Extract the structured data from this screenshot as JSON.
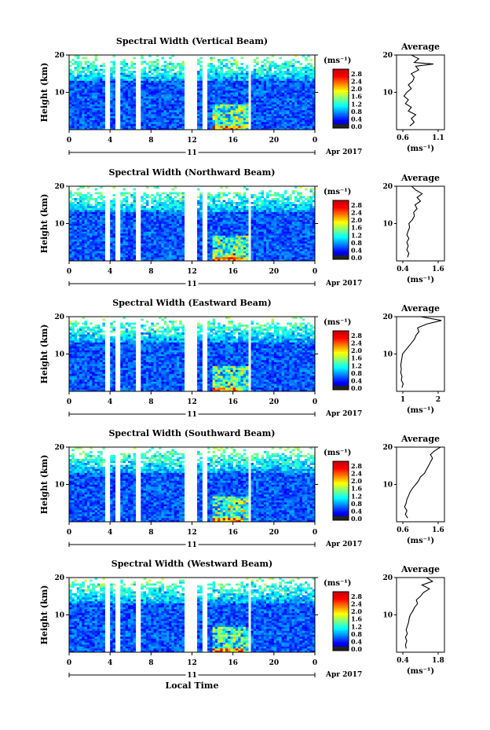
{
  "chart_data": [
    {
      "type": "heatmap",
      "title": "Spectral Width (Vertical Beam)",
      "ylabel": "Height (km)",
      "x_ticks": [
        "0",
        "4",
        "8",
        "12",
        "16",
        "20",
        "0"
      ],
      "y_ticks": [
        "10",
        "20"
      ],
      "date_day": "11",
      "date_label": "Apr 2017",
      "colorbar": {
        "unit": "(ms⁻¹)",
        "ticks": [
          "2.8",
          "2.4",
          "2.0",
          "1.6",
          "1.2",
          "0.8",
          "0.4",
          "0.0"
        ]
      },
      "average": {
        "title": "Average",
        "xlabel": "(ms⁻¹)",
        "x_ticks": [
          "0.6",
          "1.1"
        ],
        "xlim": [
          0.5,
          1.15
        ],
        "y_ticks": [
          "10",
          "20"
        ],
        "profile": [
          [
            0.68,
            1
          ],
          [
            0.74,
            2
          ],
          [
            0.7,
            3
          ],
          [
            0.76,
            4
          ],
          [
            0.66,
            5
          ],
          [
            0.7,
            6
          ],
          [
            0.62,
            7
          ],
          [
            0.66,
            8
          ],
          [
            0.6,
            9
          ],
          [
            0.64,
            10
          ],
          [
            0.7,
            11
          ],
          [
            0.66,
            12
          ],
          [
            0.72,
            13
          ],
          [
            0.74,
            14
          ],
          [
            0.7,
            15
          ],
          [
            0.8,
            16
          ],
          [
            0.76,
            17
          ],
          [
            1.0,
            17.6
          ],
          [
            0.74,
            18
          ],
          [
            0.8,
            19
          ],
          [
            0.7,
            20
          ]
        ]
      }
    },
    {
      "type": "heatmap",
      "title": "Spectral Width (Northward Beam)",
      "ylabel": "Height (km)",
      "x_ticks": [
        "0",
        "4",
        "8",
        "12",
        "16",
        "20",
        "0"
      ],
      "y_ticks": [
        "10",
        "20"
      ],
      "date_day": "11",
      "date_label": "Apr 2017",
      "colorbar": {
        "unit": "(ms⁻¹)",
        "ticks": [
          "2.8",
          "2.4",
          "2.0",
          "1.6",
          "1.2",
          "0.8",
          "0.4",
          "0.0"
        ]
      },
      "average": {
        "title": "Average",
        "xlabel": "(ms⁻¹)",
        "x_ticks": [
          "0.4",
          "1.6"
        ],
        "xlim": [
          0.3,
          1.7
        ],
        "y_ticks": [
          "10",
          "20"
        ],
        "profile": [
          [
            0.62,
            1
          ],
          [
            0.66,
            2
          ],
          [
            0.6,
            3
          ],
          [
            0.64,
            4
          ],
          [
            0.6,
            5
          ],
          [
            0.66,
            6
          ],
          [
            0.6,
            7
          ],
          [
            0.64,
            8
          ],
          [
            0.68,
            9
          ],
          [
            0.66,
            10
          ],
          [
            0.76,
            11
          ],
          [
            0.82,
            12
          ],
          [
            0.8,
            13
          ],
          [
            0.9,
            14
          ],
          [
            0.84,
            15
          ],
          [
            1.0,
            16
          ],
          [
            0.9,
            17
          ],
          [
            1.05,
            18
          ],
          [
            0.86,
            19
          ],
          [
            0.74,
            20
          ]
        ]
      }
    },
    {
      "type": "heatmap",
      "title": "Spectral Width (Eastward Beam)",
      "ylabel": "Height (km)",
      "x_ticks": [
        "0",
        "4",
        "8",
        "12",
        "16",
        "20",
        "0"
      ],
      "y_ticks": [
        "10",
        "20"
      ],
      "date_day": "11",
      "date_label": "Apr 2017",
      "colorbar": {
        "unit": "(ms⁻¹)",
        "ticks": [
          "2.8",
          "2.4",
          "2.0",
          "1.6",
          "1.2",
          "0.8",
          "0.4",
          "0.0"
        ]
      },
      "average": {
        "title": "Average",
        "xlabel": "(ms⁻¹)",
        "x_ticks": [
          "1",
          "2"
        ],
        "xlim": [
          0.6,
          2.2
        ],
        "y_ticks": [
          "10",
          "20"
        ],
        "profile": [
          [
            0.78,
            1
          ],
          [
            0.82,
            2
          ],
          [
            0.76,
            3
          ],
          [
            0.78,
            4
          ],
          [
            0.74,
            5
          ],
          [
            0.76,
            6
          ],
          [
            0.74,
            7
          ],
          [
            0.76,
            8
          ],
          [
            0.78,
            9
          ],
          [
            0.8,
            10
          ],
          [
            0.9,
            11
          ],
          [
            1.0,
            12
          ],
          [
            1.1,
            13
          ],
          [
            1.2,
            14
          ],
          [
            1.25,
            15
          ],
          [
            1.35,
            16
          ],
          [
            1.3,
            17
          ],
          [
            1.6,
            18
          ],
          [
            2.1,
            19
          ],
          [
            1.4,
            20
          ]
        ]
      }
    },
    {
      "type": "heatmap",
      "title": "Spectral Width (Southward Beam)",
      "ylabel": "Height (km)",
      "x_ticks": [
        "0",
        "4",
        "8",
        "12",
        "16",
        "20",
        "0"
      ],
      "y_ticks": [
        "10",
        "20"
      ],
      "date_day": "11",
      "date_label": "Apr 2017",
      "colorbar": {
        "unit": "(ms⁻¹)",
        "ticks": [
          "2.8",
          "2.4",
          "2.0",
          "1.6",
          "1.2",
          "0.8",
          "0.4",
          "0.0"
        ]
      },
      "average": {
        "title": "Average",
        "xlabel": "(ms⁻¹)",
        "x_ticks": [
          "0.6",
          "1.6"
        ],
        "xlim": [
          0.5,
          1.7
        ],
        "y_ticks": [
          "10",
          "20"
        ],
        "profile": [
          [
            0.78,
            1
          ],
          [
            0.72,
            2
          ],
          [
            0.76,
            3
          ],
          [
            0.7,
            4
          ],
          [
            0.74,
            5
          ],
          [
            0.76,
            6
          ],
          [
            0.8,
            7
          ],
          [
            0.84,
            8
          ],
          [
            0.9,
            9
          ],
          [
            0.98,
            10
          ],
          [
            1.05,
            11
          ],
          [
            1.1,
            12
          ],
          [
            1.2,
            13
          ],
          [
            1.25,
            14
          ],
          [
            1.3,
            15
          ],
          [
            1.35,
            16
          ],
          [
            1.4,
            17
          ],
          [
            1.35,
            18
          ],
          [
            1.45,
            19
          ],
          [
            1.6,
            20
          ]
        ]
      }
    },
    {
      "type": "heatmap",
      "title": "Spectral Width (Westward Beam)",
      "ylabel": "Height (km)",
      "x_ticks": [
        "0",
        "4",
        "8",
        "12",
        "16",
        "20",
        "0"
      ],
      "y_ticks": [
        "10",
        "20"
      ],
      "date_day": "11",
      "date_label": "Apr 2017",
      "xlabel": "Local Time",
      "colorbar": {
        "unit": "(ms⁻¹)",
        "ticks": [
          "2.8",
          "2.4",
          "2.0",
          "1.6",
          "1.2",
          "0.8",
          "0.4",
          "0.0"
        ]
      },
      "average": {
        "title": "Average",
        "xlabel": "(ms⁻¹)",
        "x_ticks": [
          "0.4",
          "1.8"
        ],
        "xlim": [
          0.3,
          1.9
        ],
        "y_ticks": [
          "10",
          "20"
        ],
        "profile": [
          [
            0.62,
            1
          ],
          [
            0.6,
            2
          ],
          [
            0.64,
            3
          ],
          [
            0.6,
            4
          ],
          [
            0.66,
            5
          ],
          [
            0.62,
            6
          ],
          [
            0.66,
            7
          ],
          [
            0.7,
            8
          ],
          [
            0.72,
            9
          ],
          [
            0.76,
            10
          ],
          [
            0.84,
            11
          ],
          [
            0.9,
            12
          ],
          [
            1.0,
            13
          ],
          [
            0.96,
            14
          ],
          [
            1.1,
            15
          ],
          [
            1.2,
            16
          ],
          [
            1.4,
            17
          ],
          [
            1.15,
            18
          ],
          [
            1.5,
            19
          ],
          [
            1.3,
            20
          ]
        ]
      }
    }
  ]
}
